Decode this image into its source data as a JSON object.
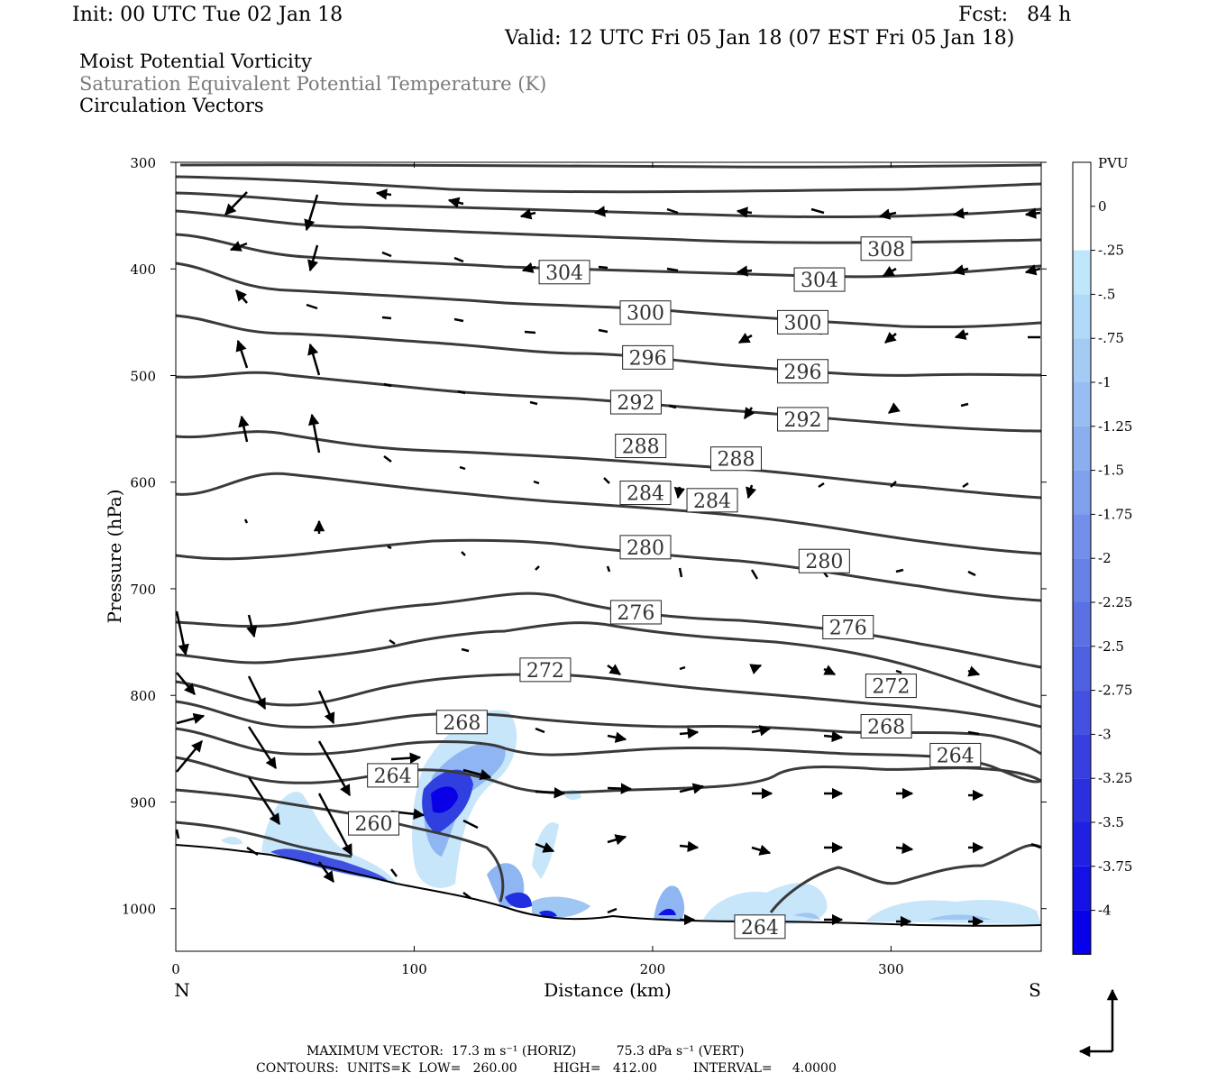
{
  "header": {
    "init": "Init: 00 UTC Tue 02 Jan 18",
    "fcst": "Fcst:   84 h",
    "valid": "Valid: 12 UTC Fri 05 Jan 18 (07 EST Fri 05 Jan 18)"
  },
  "legend_lines": {
    "line1": "Moist Potential Vorticity",
    "line2": "Saturation Equivalent Potential Temperature (K)",
    "line3": "Circulation Vectors"
  },
  "footer": {
    "max_vector": "MAXIMUM VECTOR:  17.3 m s⁻¹ (HORIZ)          75.3 dPa s⁻¹ (VERT)",
    "contours": "CONTOURS:  UNITS=K  LOW=   260.00         HIGH=   412.00         INTERVAL=     4.0000"
  },
  "colors": {
    "contour": "#3a3a3a",
    "pv_light": "#c8e6fa",
    "pv_dark": "#0000ee"
  },
  "chart_data": {
    "type": "cross-section",
    "xlabel": "Distance (km)",
    "ylabel": "Pressure (hPa)",
    "x_end_labels": {
      "left": "N",
      "right": "S"
    },
    "xlim": [
      0,
      363
    ],
    "ylim": [
      1040,
      300
    ],
    "x_ticks": [
      0,
      100,
      200,
      300
    ],
    "y_ticks": [
      300,
      400,
      500,
      600,
      700,
      800,
      900,
      1000
    ],
    "colorbar": {
      "unit": "PVU",
      "labels": [
        "0",
        "-.25",
        "-.5",
        "-.75",
        "-1",
        "-1.25",
        "-1.5",
        "-1.75",
        "-2",
        "-2.25",
        "-2.5",
        "-2.75",
        "-3",
        "-3.25",
        "-3.5",
        "-3.75",
        "-4"
      ],
      "colors": [
        "#ffffff",
        "#ffffff",
        "#c0e6fb",
        "#b1d9f8",
        "#a5cbf5",
        "#98bdf2",
        "#8caeef",
        "#809fec",
        "#748fe9",
        "#6780e6",
        "#5b70e3",
        "#4f60e1",
        "#4350e0",
        "#3740df",
        "#2b30df",
        "#1f20e2",
        "#1410e6",
        "#0700ea"
      ]
    },
    "contour_labels": [
      {
        "value": "308",
        "x": 298,
        "p": 381
      },
      {
        "value": "304",
        "x": 163,
        "p": 403
      },
      {
        "value": "304",
        "x": 270,
        "p": 410
      },
      {
        "value": "300",
        "x": 197,
        "p": 441
      },
      {
        "value": "300",
        "x": 263,
        "p": 450
      },
      {
        "value": "296",
        "x": 198,
        "p": 483
      },
      {
        "value": "296",
        "x": 263,
        "p": 496
      },
      {
        "value": "292",
        "x": 193,
        "p": 525
      },
      {
        "value": "292",
        "x": 263,
        "p": 541
      },
      {
        "value": "288",
        "x": 195,
        "p": 566
      },
      {
        "value": "288",
        "x": 235,
        "p": 578
      },
      {
        "value": "284",
        "x": 197,
        "p": 610
      },
      {
        "value": "284",
        "x": 225,
        "p": 617
      },
      {
        "value": "280",
        "x": 197,
        "p": 661
      },
      {
        "value": "280",
        "x": 272,
        "p": 674
      },
      {
        "value": "276",
        "x": 193,
        "p": 722
      },
      {
        "value": "276",
        "x": 282,
        "p": 736
      },
      {
        "value": "272",
        "x": 155,
        "p": 776
      },
      {
        "value": "272",
        "x": 300,
        "p": 791
      },
      {
        "value": "268",
        "x": 120,
        "p": 825
      },
      {
        "value": "268",
        "x": 298,
        "p": 829
      },
      {
        "value": "264",
        "x": 91,
        "p": 875
      },
      {
        "value": "264",
        "x": 327,
        "p": 856
      },
      {
        "value": "264",
        "x": 245,
        "p": 1017
      },
      {
        "value": "260",
        "x": 83,
        "p": 920
      }
    ]
  }
}
